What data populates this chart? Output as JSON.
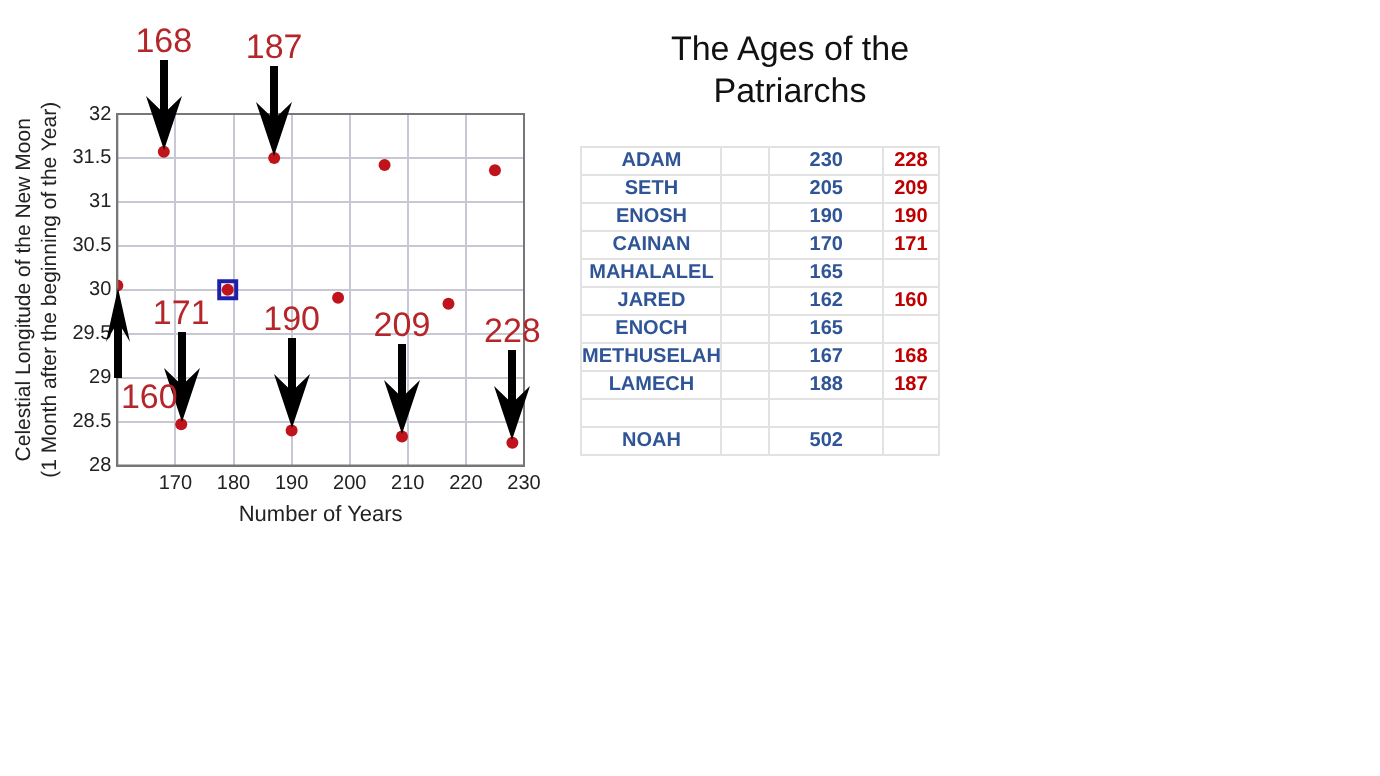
{
  "chart_data": [
    {
      "type": "scatter",
      "xlabel": "Number of Years",
      "ylabel": "Celestial Longitude of the New Moon\n(1 Month after the beginning of the Year)",
      "x": [
        160,
        168,
        171,
        179,
        187,
        190,
        198,
        206,
        209,
        217,
        225,
        228
      ],
      "series": [
        {
          "color": "#c0141c",
          "values": [
            30.05,
            31.57,
            28.47,
            30.0,
            31.5,
            28.4,
            29.91,
            31.42,
            28.33,
            29.84,
            31.36,
            28.26
          ]
        },
        {
          "color": "#1f1fa8",
          "marker": "square",
          "x": [
            179
          ],
          "values": [
            30.0
          ]
        }
      ],
      "annotations": [
        {
          "text": "168",
          "x": 168,
          "y": 31.57
        },
        {
          "text": "187",
          "x": 187,
          "y": 31.5
        },
        {
          "text": "171",
          "x": 171,
          "y": 28.47
        },
        {
          "text": "190",
          "x": 190,
          "y": 28.4
        },
        {
          "text": "209",
          "x": 209,
          "y": 28.33
        },
        {
          "text": "228",
          "x": 228,
          "y": 28.26
        },
        {
          "text": "160",
          "x": 160,
          "y": 30.05
        }
      ],
      "xlim": [
        160,
        230
      ],
      "xticks": [
        {
          "value": 160,
          "label": null
        },
        170,
        180,
        190,
        200,
        210,
        220,
        230
      ],
      "ylim": [
        28,
        32
      ],
      "yticks": [
        28,
        28.5,
        29,
        29.5,
        30,
        30.5,
        31,
        31.5,
        32
      ],
      "grid": true,
      "marker": "circle"
    },
    {
      "type": "other",
      "title": "The Ages of the Patriarchs",
      "data_labels": true,
      "categories": [
        "ADAM",
        "SETH",
        "ENOSH",
        "CAINAN",
        "MAHALALEL",
        "JARED",
        "ENOCH",
        "METHUSELAH",
        "LAMECH",
        null,
        "NOAH"
      ],
      "series": [
        {
          "color": "#2f5597",
          "values": [
            230,
            205,
            190,
            170,
            165,
            162,
            165,
            167,
            188,
            null,
            502
          ]
        },
        {
          "color": "#c00000",
          "values": [
            228,
            209,
            190,
            171,
            null,
            160,
            null,
            168,
            187,
            null,
            null
          ]
        }
      ]
    }
  ]
}
